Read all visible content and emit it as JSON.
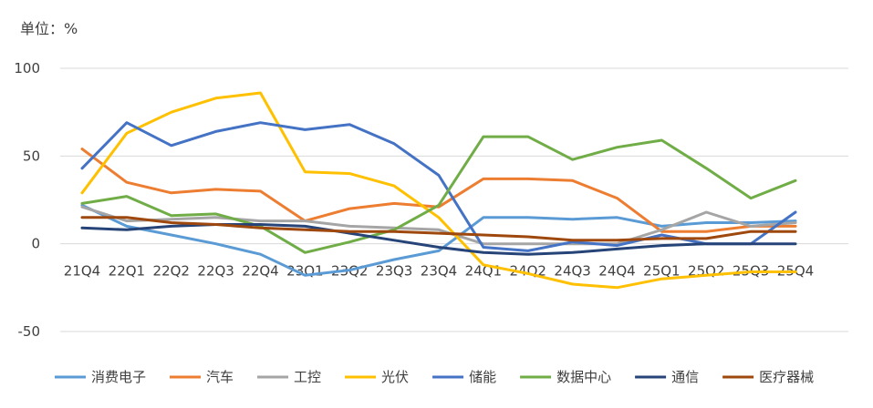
{
  "unit_label": "单位：%",
  "chart_data": {
    "type": "line",
    "title": "",
    "xlabel": "",
    "ylabel": "",
    "ylim": [
      -50,
      100
    ],
    "yticks": [
      -50,
      0,
      50,
      100
    ],
    "grid": true,
    "legend_position": "bottom",
    "categories": [
      "21Q4",
      "22Q1",
      "22Q2",
      "22Q3",
      "22Q4",
      "23Q1",
      "23Q2",
      "23Q3",
      "23Q4",
      "24Q1",
      "24Q2",
      "24Q3",
      "24Q4",
      "25Q1",
      "25Q2",
      "25Q3",
      "25Q4"
    ],
    "series": [
      {
        "name": "消费电子",
        "color": "#5b9bd5",
        "values": [
          22,
          10,
          5,
          0,
          -6,
          -18,
          -15,
          -9,
          -4,
          15,
          15,
          14,
          15,
          10,
          12,
          12,
          13
        ]
      },
      {
        "name": "汽车",
        "color": "#ed7d31",
        "values": [
          54,
          35,
          29,
          31,
          30,
          13,
          20,
          23,
          21,
          37,
          37,
          36,
          26,
          7,
          7,
          10,
          10
        ]
      },
      {
        "name": "工控",
        "color": "#a5a5a5",
        "values": [
          21,
          13,
          14,
          15,
          13,
          13,
          10,
          9,
          8,
          0,
          0,
          0,
          0,
          8,
          18,
          10,
          12
        ]
      },
      {
        "name": "光伏",
        "color": "#ffc000",
        "values": [
          29,
          63,
          75,
          83,
          86,
          41,
          40,
          33,
          15,
          -12,
          -17,
          -23,
          -25,
          -20,
          -18,
          -16,
          -16
        ]
      },
      {
        "name": "储能",
        "color": "#4472c4",
        "values": [
          43,
          69,
          56,
          64,
          69,
          65,
          68,
          57,
          39,
          -2,
          -4,
          1,
          -1,
          5,
          0,
          0,
          18
        ]
      },
      {
        "name": "数据中心",
        "color": "#70ad47",
        "values": [
          23,
          27,
          16,
          17,
          10,
          -5,
          1,
          8,
          22,
          61,
          61,
          48,
          55,
          59,
          43,
          26,
          36
        ]
      },
      {
        "name": "通信",
        "color": "#264478",
        "values": [
          9,
          8,
          10,
          11,
          11,
          10,
          6,
          2,
          -2,
          -5,
          -6,
          -5,
          -3,
          -1,
          0,
          0,
          0
        ]
      },
      {
        "name": "医疗器械",
        "color": "#9e480e",
        "values": [
          15,
          15,
          12,
          11,
          9,
          8,
          7,
          7,
          6,
          5,
          4,
          2,
          2,
          3,
          3,
          7,
          7
        ]
      }
    ]
  }
}
